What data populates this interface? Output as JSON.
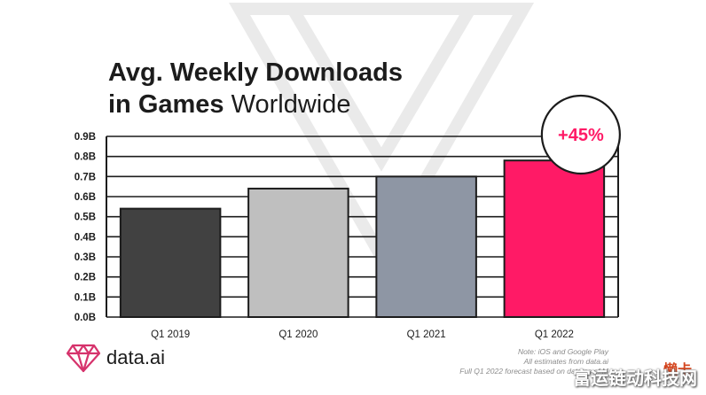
{
  "chart_data": {
    "type": "bar",
    "title_line1": "Avg. Weekly Downloads",
    "title_line2_bold": "in Games",
    "title_line2_regular": "Worldwide",
    "categories": [
      "Q1 2019",
      "Q1 2020",
      "Q1 2021",
      "Q1 2022"
    ],
    "values": [
      0.54,
      0.64,
      0.7,
      0.78
    ],
    "bar_colors": [
      "#414141",
      "#bfbfbf",
      "#8e96a4",
      "#ff1a66"
    ],
    "yticks": [
      "0.0B",
      "0.1B",
      "0.2B",
      "0.3B",
      "0.4B",
      "0.5B",
      "0.6B",
      "0.7B",
      "0.8B",
      "0.9B"
    ],
    "ylim": [
      0,
      0.9
    ],
    "grid": true,
    "annotation": "+45%",
    "annotation_color": "#ff1a66"
  },
  "brand": {
    "name": "data.ai"
  },
  "notes": {
    "line1": "Note: iOS and Google Play",
    "line2": "All estimates from data.ai",
    "line3": "Full Q1 2022 forecast based on data as of M"
  },
  "watermark": {
    "text": "富运链动科技网",
    "logo_text": "懒卡"
  }
}
